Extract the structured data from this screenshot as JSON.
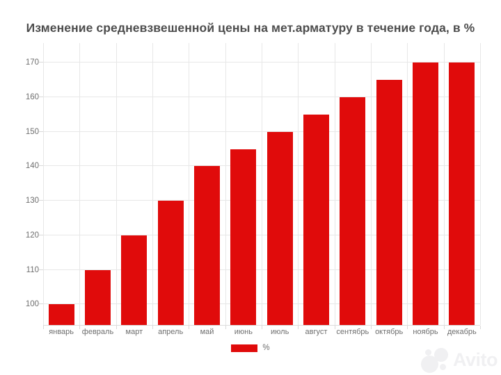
{
  "title": "Изменение средневзвешенной цены на мет.арматуру в течение года, в %",
  "chart_data": {
    "type": "bar",
    "title": "Изменение средневзвешенной цены на мет.арматуру в течение года, в %",
    "categories": [
      "январь",
      "февраль",
      "март",
      "апрель",
      "май",
      "июнь",
      "июль",
      "август",
      "сентябрь",
      "октябрь",
      "ноябрь",
      "декабрь"
    ],
    "series": [
      {
        "name": "%",
        "values": [
          100,
          110,
          120,
          130,
          140,
          145,
          150,
          155,
          160,
          165,
          170,
          170
        ]
      }
    ],
    "xlabel": "",
    "ylabel": "",
    "yticks": [
      100,
      110,
      120,
      130,
      140,
      150,
      160,
      170
    ],
    "ylim": [
      94,
      175.7
    ],
    "grid": true,
    "legend_position": "bottom",
    "bar_color": "#e00b0b"
  },
  "legend": {
    "label": "%",
    "swatch_color": "#e00b0b"
  },
  "watermark": {
    "text": "Avito"
  },
  "colors": {
    "bar": "#e00b0b",
    "grid": "#e7e7e7",
    "axis_text": "#6e6e6e",
    "title_text": "#4d4d4d",
    "watermark": "#f0f0f2",
    "background": "#ffffff"
  }
}
